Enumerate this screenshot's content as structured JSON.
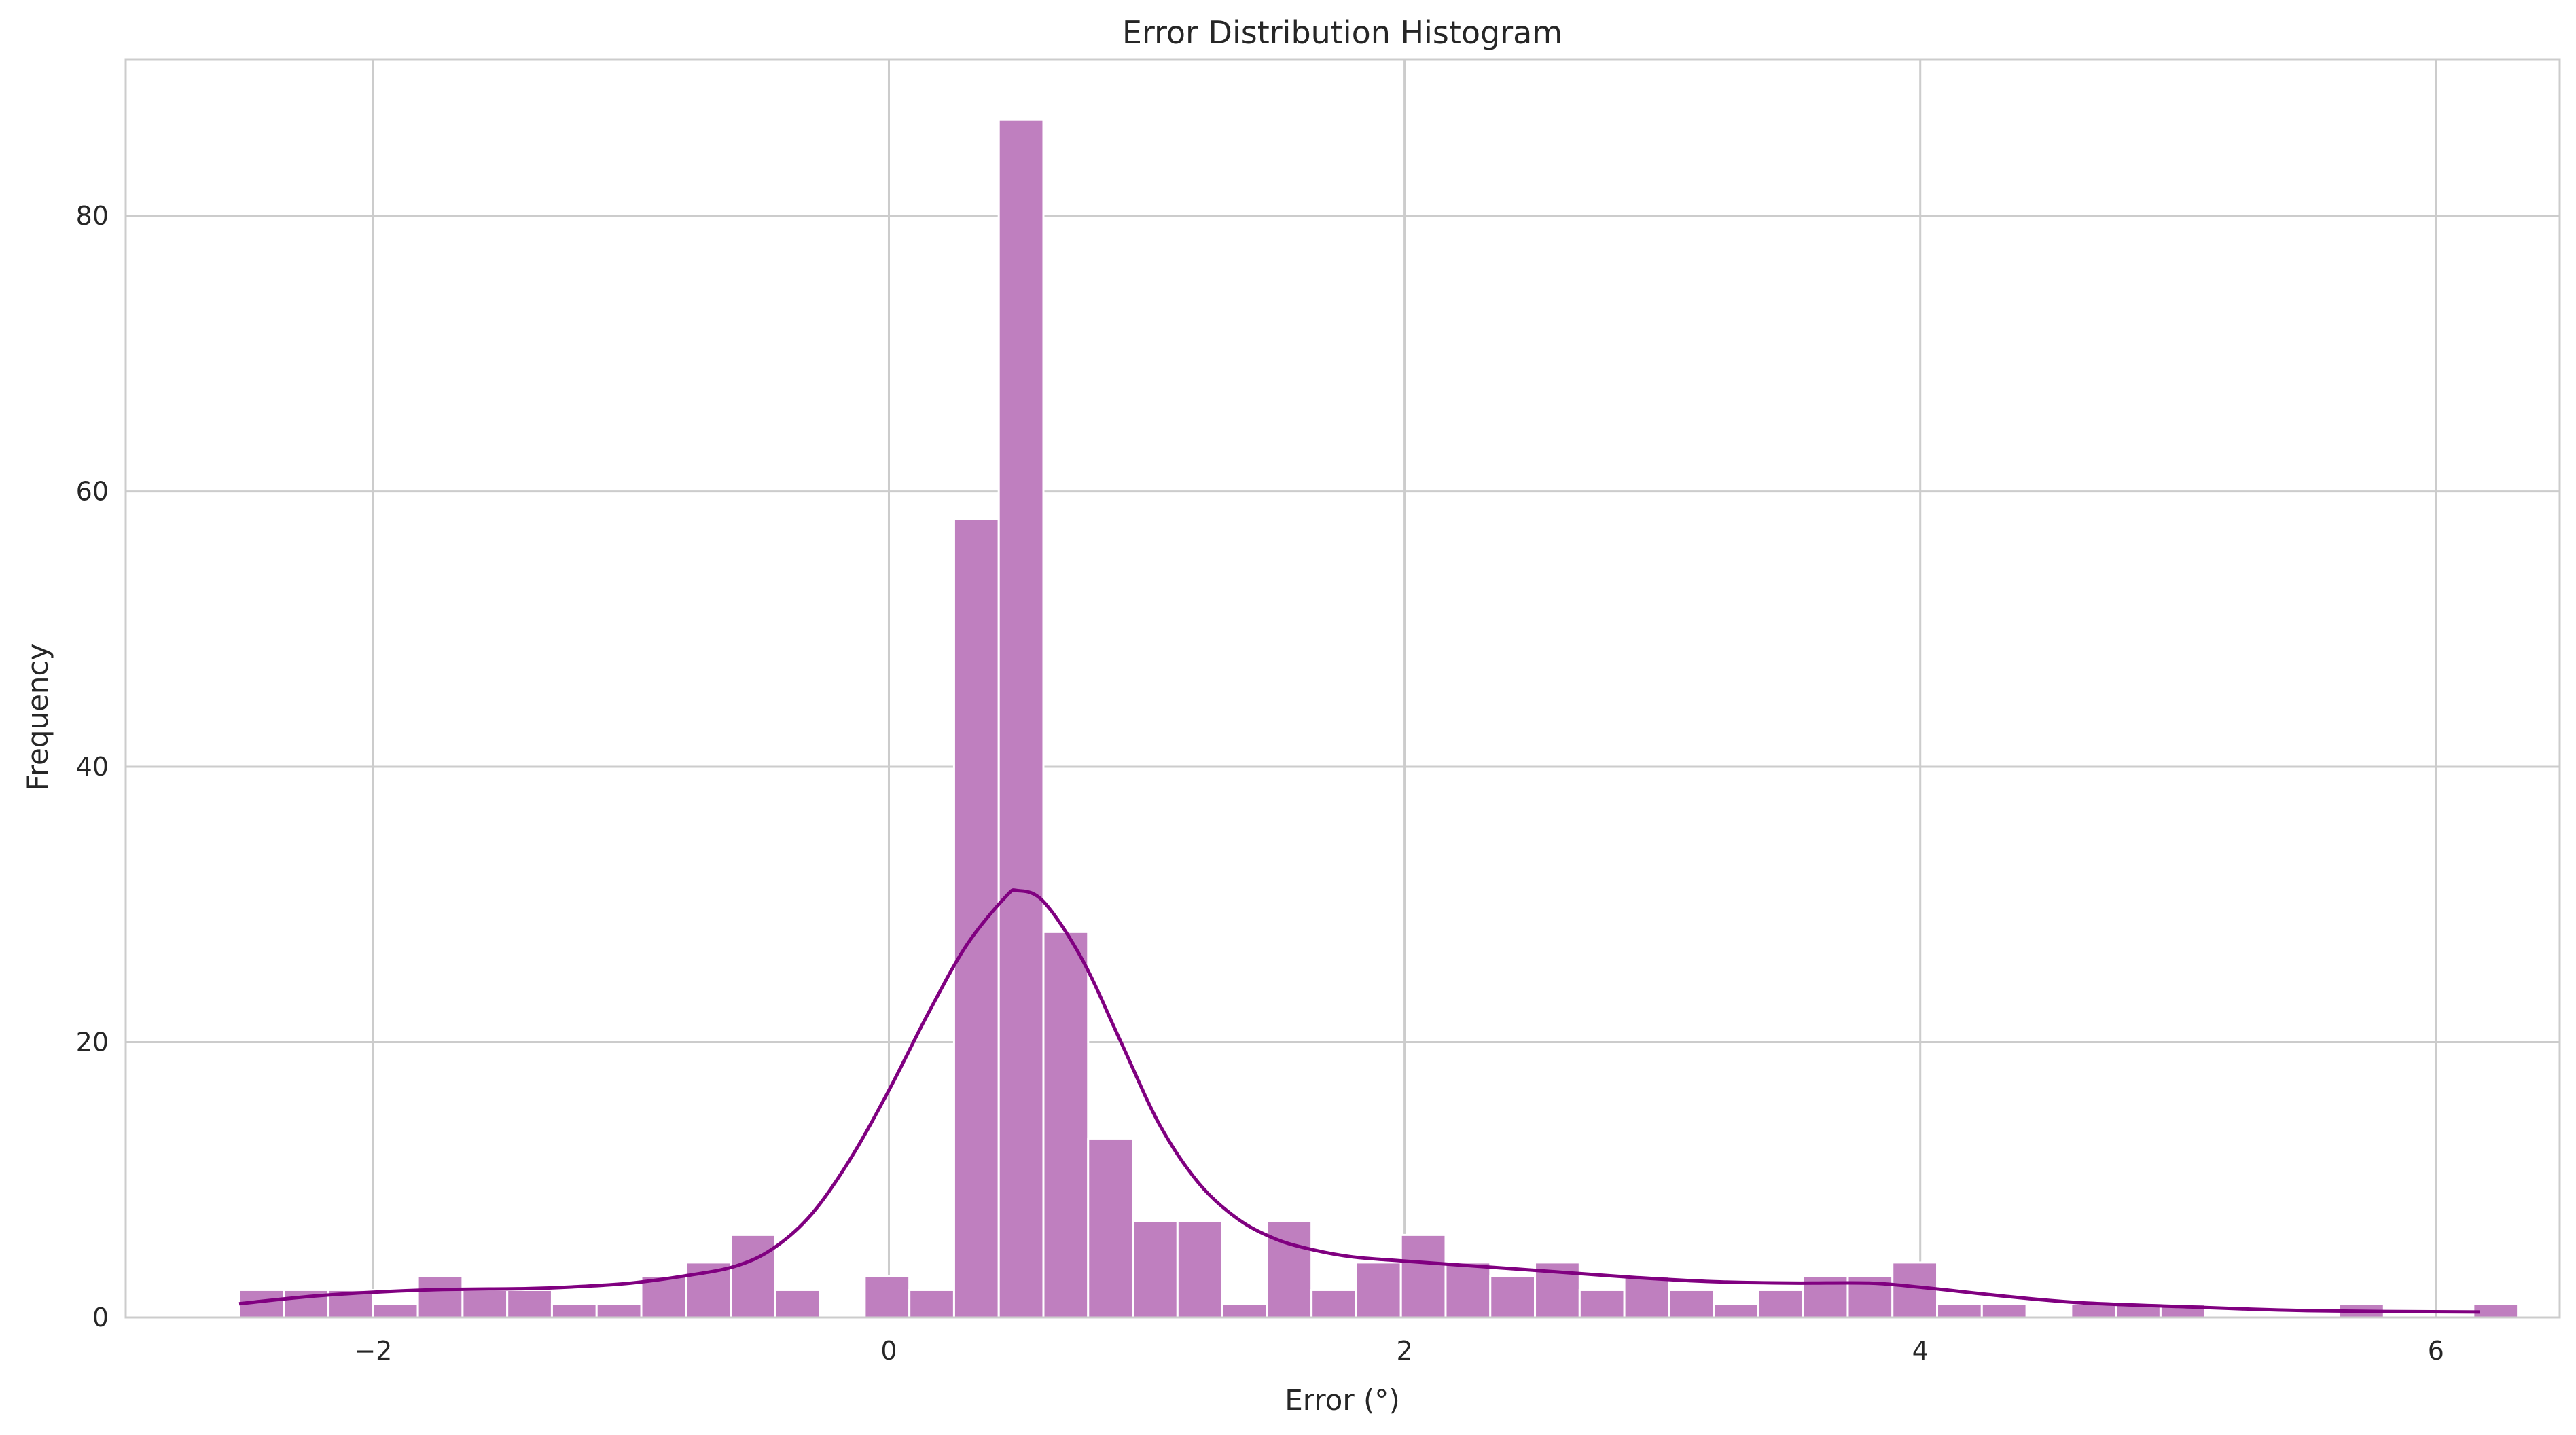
{
  "chart_data": {
    "type": "bar",
    "title": "Error Distribution Histogram",
    "xlabel": "Error (°)",
    "ylabel": "Frequency",
    "xlim": [
      -2.96,
      6.48
    ],
    "ylim": [
      0,
      91.35
    ],
    "x_ticks": [
      -2,
      0,
      2,
      4,
      6
    ],
    "x_tick_labels": [
      "−2",
      "0",
      "2",
      "4",
      "6"
    ],
    "y_ticks": [
      0,
      20,
      40,
      60,
      80
    ],
    "y_tick_labels": [
      "0",
      "20",
      "40",
      "60",
      "80"
    ],
    "grid": true,
    "bin_start": -2.52,
    "bin_width": 0.1733,
    "counts": [
      2,
      2,
      2,
      1,
      3,
      2,
      2,
      1,
      1,
      3,
      4,
      6,
      2,
      0,
      3,
      2,
      58,
      87,
      28,
      13,
      7,
      7,
      1,
      7,
      2,
      4,
      6,
      4,
      3,
      4,
      2,
      3,
      2,
      1,
      2,
      3,
      3,
      4,
      1,
      1,
      0,
      1,
      1,
      1,
      0,
      0,
      0,
      1,
      0,
      0,
      1
    ],
    "kde": {
      "x": [
        -2.52,
        -2.2,
        -1.8,
        -1.4,
        -1.2,
        -1.0,
        -0.8,
        -0.6,
        -0.45,
        -0.3,
        -0.15,
        0.0,
        0.15,
        0.3,
        0.45,
        0.5,
        0.6,
        0.75,
        0.9,
        1.05,
        1.2,
        1.35,
        1.5,
        1.65,
        1.8,
        2.0,
        2.3,
        2.6,
        2.9,
        3.2,
        3.5,
        3.8,
        4.0,
        4.3,
        4.6,
        5.0,
        5.5,
        6.17
      ],
      "y": [
        1.0,
        1.6,
        2.0,
        2.1,
        2.25,
        2.5,
        3.0,
        3.7,
        5.0,
        7.5,
        11.5,
        16.5,
        22.0,
        27.0,
        30.5,
        31.0,
        30.2,
        26.0,
        20.0,
        14.0,
        9.8,
        7.2,
        5.7,
        4.9,
        4.4,
        4.1,
        3.7,
        3.3,
        2.9,
        2.6,
        2.5,
        2.5,
        2.2,
        1.6,
        1.1,
        0.8,
        0.5,
        0.4
      ]
    },
    "colors": {
      "bars": "#bf7fbf",
      "line": "#800080",
      "grid": "#cccccc"
    }
  }
}
